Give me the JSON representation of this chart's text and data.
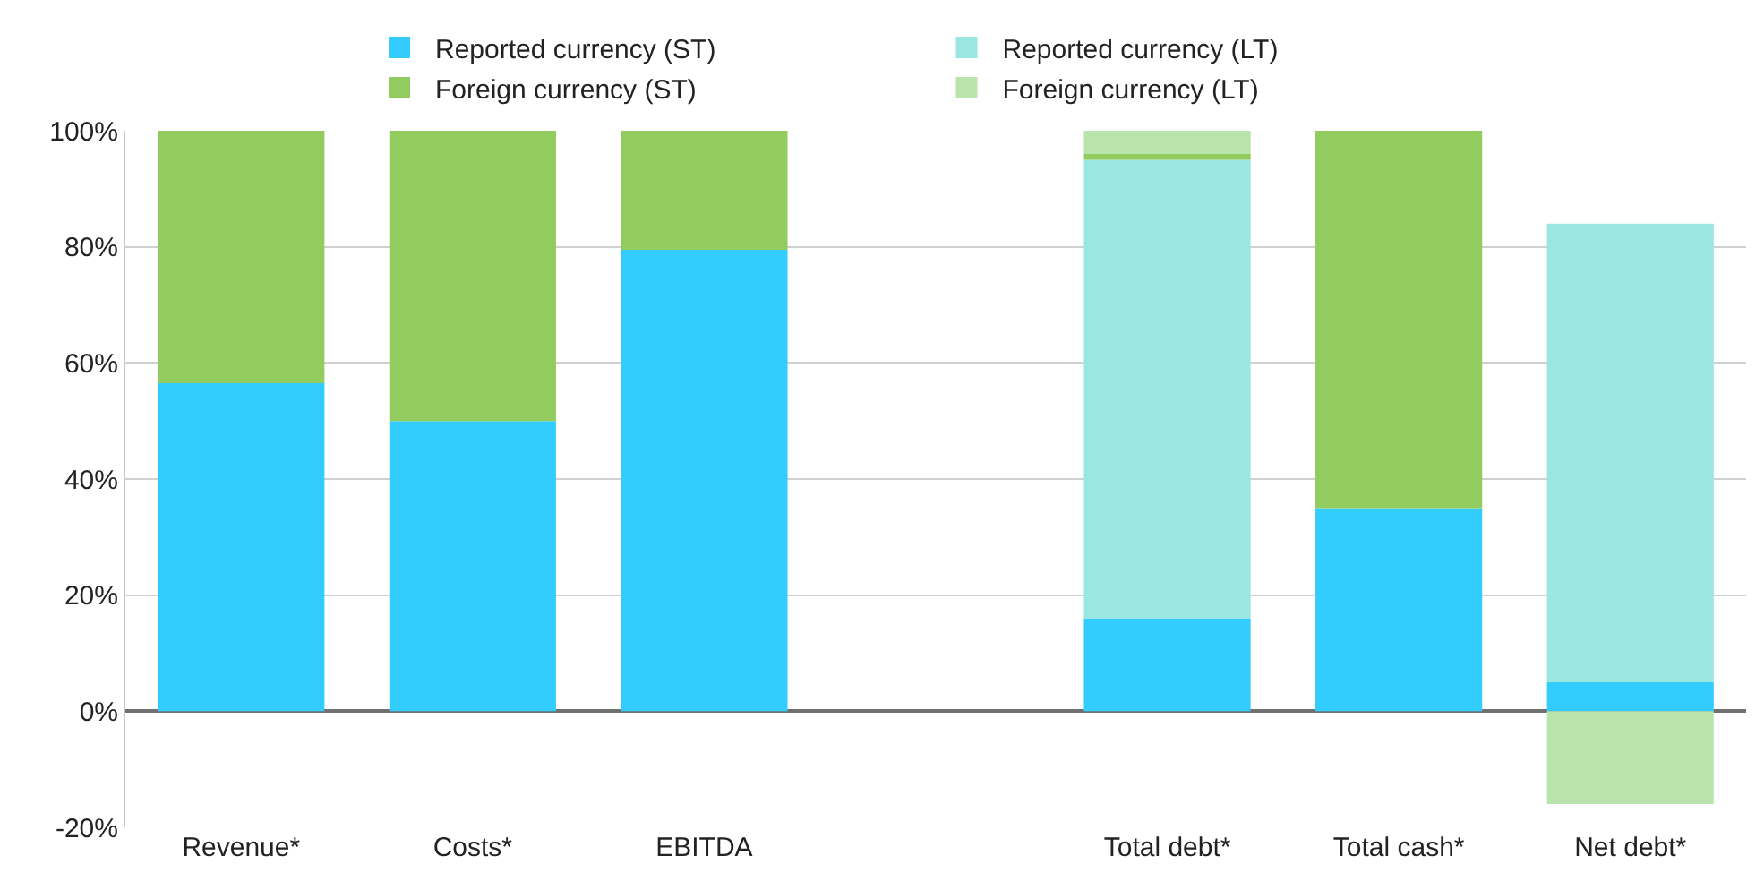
{
  "chart_data": {
    "type": "bar",
    "stacked": true,
    "categories": [
      "Revenue*",
      "Costs*",
      "EBITDA",
      null,
      "Total debt*",
      "Total cash*",
      "Net debt*"
    ],
    "series": [
      {
        "name": "Reported currency (ST)",
        "color": "#33ccff",
        "values": [
          56.5,
          50,
          79.5,
          null,
          16,
          35,
          5
        ]
      },
      {
        "name": "Reported currency (LT)",
        "color": "#9ae6e0",
        "values": [
          null,
          null,
          null,
          null,
          79,
          null,
          79
        ]
      },
      {
        "name": "Foreign currency (ST)",
        "color": "#92cb5e",
        "values": [
          43.5,
          50,
          20.5,
          null,
          1,
          65,
          null
        ]
      },
      {
        "name": "Foreign currency (LT)",
        "color": "#b9e5ad",
        "values": [
          null,
          null,
          null,
          null,
          4,
          null,
          -16
        ]
      }
    ],
    "ylim": [
      -20,
      100
    ],
    "yticks": [
      {
        "value": -20,
        "label": "-20%"
      },
      {
        "value": 0,
        "label": "0%"
      },
      {
        "value": 20,
        "label": "20%"
      },
      {
        "value": 40,
        "label": "40%"
      },
      {
        "value": 60,
        "label": "60%"
      },
      {
        "value": 80,
        "label": "80%"
      },
      {
        "value": 100,
        "label": "100%"
      }
    ],
    "grid": "y",
    "legend": "top"
  }
}
